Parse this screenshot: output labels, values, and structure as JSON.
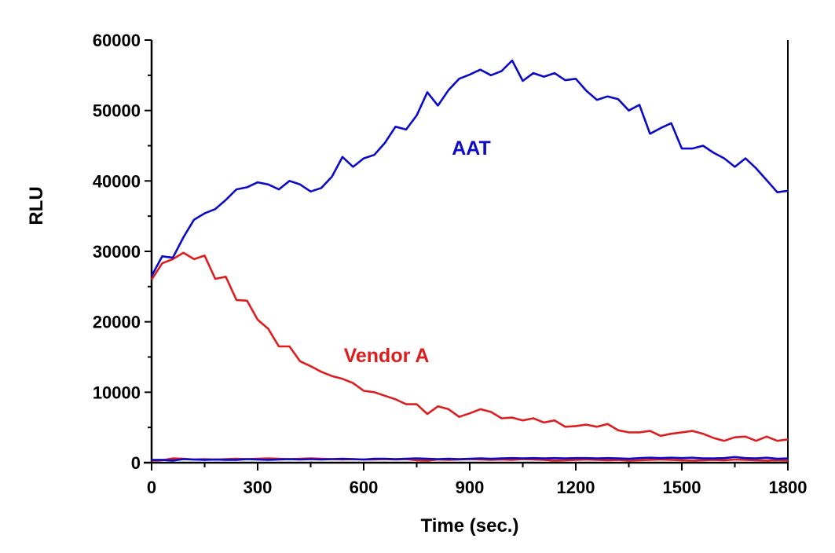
{
  "chart_data": {
    "type": "line",
    "title": "",
    "xlabel": "Time (sec.)",
    "ylabel": "RLU",
    "xlim": [
      0,
      1800
    ],
    "ylim": [
      0,
      60000
    ],
    "xticks": [
      0,
      300,
      600,
      900,
      1200,
      1500,
      1800
    ],
    "yticks": [
      0,
      10000,
      20000,
      30000,
      40000,
      50000,
      60000
    ],
    "grid": false,
    "x_step": 30,
    "series": [
      {
        "name": "AAT",
        "color": "#0a0ac8",
        "values": [
          26500,
          29300,
          29100,
          32000,
          34500,
          35400,
          36000,
          37300,
          38800,
          39100,
          39800,
          39500,
          38800,
          40000,
          39500,
          38500,
          39000,
          40600,
          43400,
          42000,
          43200,
          43700,
          45400,
          47700,
          47300,
          49300,
          52600,
          50700,
          52900,
          54500,
          55100,
          55800,
          55000,
          55600,
          57100,
          54200,
          55300,
          54800,
          55300,
          54300,
          54500,
          52800,
          51500,
          52000,
          51600,
          50000,
          50800,
          46700,
          47500,
          48200,
          44600,
          44600,
          45000,
          44000,
          43200,
          42000,
          43200,
          41800,
          40100,
          38400,
          38600
        ]
      },
      {
        "name": "Vendor A",
        "color": "#dc1e1e",
        "values": [
          26000,
          28300,
          28900,
          29800,
          28900,
          29400,
          26100,
          26400,
          23100,
          23000,
          20300,
          19000,
          16500,
          16500,
          14400,
          13700,
          12900,
          12300,
          11900,
          11300,
          10200,
          10000,
          9500,
          9000,
          8300,
          8300,
          6900,
          8000,
          7600,
          6500,
          7000,
          7600,
          7200,
          6300,
          6400,
          6000,
          6300,
          5700,
          6000,
          5100,
          5200,
          5400,
          5100,
          5500,
          4600,
          4300,
          4300,
          4500,
          3800,
          4100,
          4300,
          4500,
          4100,
          3500,
          3100,
          3600,
          3700,
          3100,
          3700,
          3100,
          3300
        ]
      },
      {
        "color": "#0a0ac8",
        "values": [
          400,
          400,
          300,
          500,
          450,
          400,
          450,
          400,
          400,
          500,
          450,
          400,
          450,
          500,
          450,
          500,
          450,
          500,
          550,
          500,
          450,
          550,
          550,
          500,
          550,
          600,
          550,
          500,
          550,
          500,
          550,
          600,
          550,
          600,
          650,
          600,
          650,
          600,
          650,
          600,
          650,
          650,
          600,
          650,
          600,
          550,
          650,
          700,
          650,
          700,
          650,
          700,
          600,
          600,
          650,
          800,
          650,
          600,
          700,
          550,
          600
        ]
      },
      {
        "color": "#dc1e1e",
        "values": [
          300,
          350,
          600,
          550,
          450,
          500,
          450,
          500,
          550,
          500,
          550,
          600,
          550,
          500,
          550,
          600,
          550,
          500,
          450,
          500,
          450,
          450,
          500,
          450,
          500,
          350,
          300,
          450,
          400,
          450,
          500,
          450,
          400,
          450,
          400,
          500,
          450,
          400,
          300,
          350,
          400,
          450,
          400,
          350,
          400,
          300,
          350,
          400,
          450,
          400,
          350,
          300,
          350,
          400,
          350,
          450,
          400,
          350,
          300,
          350,
          300
        ]
      }
    ],
    "annotations": [
      {
        "text": "AAT",
        "color": "#0a0ac8"
      },
      {
        "text": "Vendor A",
        "color": "#dc1e1e"
      }
    ]
  }
}
